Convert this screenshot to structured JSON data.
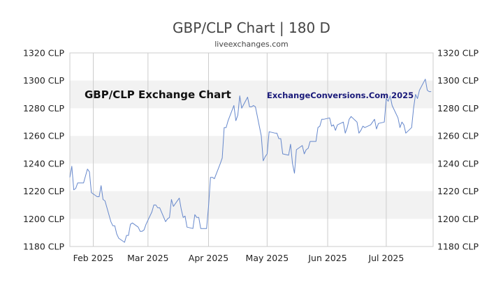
{
  "chart_data": {
    "type": "line",
    "title": "GBP/CLP Chart | 180 D",
    "subtitle": "liveexchanges.com",
    "watermark_left": "GBP/CLP Exchange Chart",
    "watermark_right": "ExchangeConversions.Com 2025",
    "xlabel": "",
    "ylabel": "",
    "ylim": [
      1180,
      1320
    ],
    "y_ticks": [
      1180,
      1200,
      1220,
      1240,
      1260,
      1280,
      1300,
      1320
    ],
    "y_tick_suffix": " CLP",
    "x_range": [
      "2025-01-20",
      "2025-07-25"
    ],
    "x_ticks": [
      {
        "date": "2025-02-01",
        "label": "Feb 2025"
      },
      {
        "date": "2025-03-01",
        "label": "Mar 2025"
      },
      {
        "date": "2025-04-01",
        "label": "Apr 2025"
      },
      {
        "date": "2025-05-01",
        "label": "May 2025"
      },
      {
        "date": "2025-06-01",
        "label": "Jun 2025"
      },
      {
        "date": "2025-07-01",
        "label": "Jul 2025"
      }
    ],
    "grid": true,
    "banded_background": true,
    "series_color": "#6688cc",
    "series": [
      {
        "name": "",
        "x": [
          "2025-01-20",
          "2025-01-21",
          "2025-01-22",
          "2025-01-23",
          "2025-01-24",
          "2025-01-27",
          "2025-01-28",
          "2025-01-29",
          "2025-01-30",
          "2025-01-31",
          "2025-02-03",
          "2025-02-04",
          "2025-02-05",
          "2025-02-06",
          "2025-02-07",
          "2025-02-10",
          "2025-02-11",
          "2025-02-12",
          "2025-02-13",
          "2025-02-14",
          "2025-02-17",
          "2025-02-18",
          "2025-02-19",
          "2025-02-20",
          "2025-02-21",
          "2025-02-24",
          "2025-02-25",
          "2025-02-26",
          "2025-02-27",
          "2025-02-28",
          "2025-03-03",
          "2025-03-04",
          "2025-03-05",
          "2025-03-06",
          "2025-03-07",
          "2025-03-10",
          "2025-03-11",
          "2025-03-12",
          "2025-03-13",
          "2025-03-14",
          "2025-03-17",
          "2025-03-18",
          "2025-03-19",
          "2025-03-20",
          "2025-03-21",
          "2025-03-24",
          "2025-03-25",
          "2025-03-26",
          "2025-03-27",
          "2025-03-28",
          "2025-03-31",
          "2025-04-01",
          "2025-04-02",
          "2025-04-03",
          "2025-04-04",
          "2025-04-07",
          "2025-04-08",
          "2025-04-09",
          "2025-04-10",
          "2025-04-11",
          "2025-04-14",
          "2025-04-15",
          "2025-04-16",
          "2025-04-17",
          "2025-04-18",
          "2025-04-21",
          "2025-04-22",
          "2025-04-23",
          "2025-04-24",
          "2025-04-25",
          "2025-04-28",
          "2025-04-29",
          "2025-04-30",
          "2025-05-01",
          "2025-05-02",
          "2025-05-05",
          "2025-05-06",
          "2025-05-07",
          "2025-05-08",
          "2025-05-09",
          "2025-05-12",
          "2025-05-13",
          "2025-05-14",
          "2025-05-15",
          "2025-05-16",
          "2025-05-19",
          "2025-05-20",
          "2025-05-21",
          "2025-05-22",
          "2025-05-23",
          "2025-05-26",
          "2025-05-27",
          "2025-05-28",
          "2025-05-29",
          "2025-05-30",
          "2025-06-02",
          "2025-06-03",
          "2025-06-04",
          "2025-06-05",
          "2025-06-06",
          "2025-06-09",
          "2025-06-10",
          "2025-06-11",
          "2025-06-12",
          "2025-06-13",
          "2025-06-16",
          "2025-06-17",
          "2025-06-18",
          "2025-06-19",
          "2025-06-20",
          "2025-06-23",
          "2025-06-24",
          "2025-06-25",
          "2025-06-26",
          "2025-06-27",
          "2025-06-30",
          "2025-07-01",
          "2025-07-02",
          "2025-07-03",
          "2025-07-04",
          "2025-07-07",
          "2025-07-08",
          "2025-07-09",
          "2025-07-10",
          "2025-07-11",
          "2025-07-14",
          "2025-07-15",
          "2025-07-16",
          "2025-07-17",
          "2025-07-18",
          "2025-07-21",
          "2025-07-22",
          "2025-07-23",
          "2025-07-24"
        ],
        "values": [
          1230,
          1238,
          1221,
          1222,
          1226,
          1226,
          1231,
          1236,
          1234,
          1219,
          1216,
          1216,
          1224,
          1214,
          1213,
          1198,
          1195,
          1195,
          1189,
          1186,
          1183,
          1188,
          1188,
          1196,
          1197,
          1194,
          1191,
          1191,
          1192,
          1196,
          1205,
          1210,
          1210,
          1208,
          1208,
          1198,
          1200,
          1201,
          1214,
          1209,
          1215,
          1207,
          1201,
          1202,
          1194,
          1193,
          1203,
          1201,
          1201,
          1193,
          1193,
          1209,
          1230,
          1230,
          1229,
          1240,
          1244,
          1266,
          1266,
          1271,
          1282,
          1271,
          1275,
          1289,
          1280,
          1288,
          1281,
          1281,
          1282,
          1281,
          1260,
          1242,
          1245,
          1247,
          1263,
          1262,
          1262,
          1258,
          1258,
          1247,
          1246,
          1254,
          1240,
          1233,
          1250,
          1253,
          1247,
          1250,
          1251,
          1256,
          1256,
          1266,
          1267,
          1272,
          1272,
          1273,
          1267,
          1268,
          1264,
          1268,
          1270,
          1262,
          1266,
          1272,
          1274,
          1270,
          1262,
          1264,
          1267,
          1266,
          1268,
          1270,
          1272,
          1265,
          1269,
          1270,
          1287,
          1285,
          1289,
          1282,
          1273,
          1266,
          1270,
          1268,
          1262,
          1266,
          1280,
          1290,
          1287,
          1293,
          1301,
          1293,
          1292,
          1292
        ]
      }
    ]
  }
}
